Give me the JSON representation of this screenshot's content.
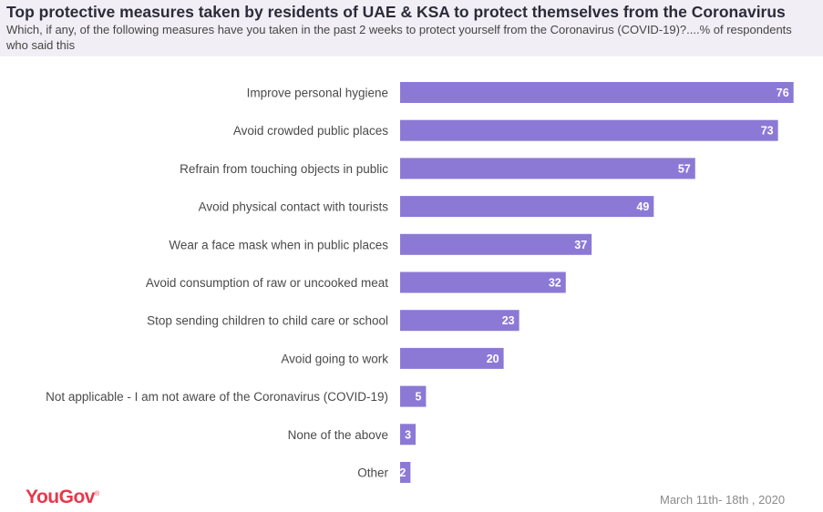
{
  "header": {
    "title": "Top protective measures taken by residents of UAE & KSA to protect themselves from the Coronavirus",
    "subtitle": "Which, if any, of the following measures have you taken in the past 2 weeks to protect yourself from the Coronavirus (COVID-19)?....% of respondents who said this"
  },
  "chart_data": {
    "type": "bar",
    "orientation": "horizontal",
    "categories": [
      "Improve personal hygiene",
      "Avoid crowded public places",
      "Refrain from touching objects in public",
      "Avoid physical contact with tourists",
      "Wear a face mask when in public places",
      "Avoid consumption of raw or uncooked meat",
      "Stop sending children to child care or school",
      "Avoid going to work",
      "Not applicable - I am not aware of the Coronavirus (COVID-19)",
      "None of the above",
      "Other"
    ],
    "values": [
      76,
      73,
      57,
      49,
      37,
      32,
      23,
      20,
      5,
      3,
      2
    ],
    "bar_color": "#8c79d6",
    "value_label_color": "#ffffff",
    "xlim": [
      0,
      80
    ],
    "grid": false,
    "legend": "none"
  },
  "footer": {
    "logo": "YouGov",
    "logo_mark": "®",
    "date": "March 11th- 18th , 2020"
  },
  "colors": {
    "brand": "#e8374c",
    "header_background": "#f1eff5"
  }
}
